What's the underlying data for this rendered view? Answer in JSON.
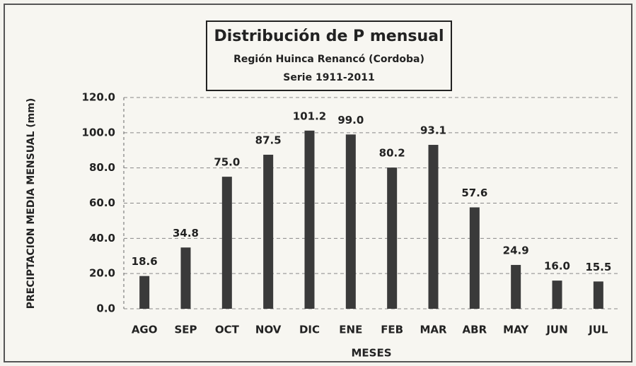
{
  "chart_data": {
    "type": "bar",
    "title": "Distribución de P mensual",
    "subtitle": [
      "Región Huinca Renancó (Cordoba)",
      "Serie 1911-2011"
    ],
    "y_label": "PRECIPTACION MEDIA MENSUAL (mm)",
    "x_label": "MESES",
    "categories": [
      "AGO",
      "SEP",
      "OCT",
      "NOV",
      "DIC",
      "ENE",
      "FEB",
      "MAR",
      "ABR",
      "MAY",
      "JUN",
      "JUL"
    ],
    "values": [
      18.6,
      34.8,
      75.0,
      87.5,
      101.2,
      99.0,
      80.2,
      93.1,
      57.6,
      24.9,
      16.0,
      15.5
    ],
    "value_labels": [
      "18.6",
      "34.8",
      "75.0",
      "87.5",
      "101.2",
      "99.0",
      "80.2",
      "93.1",
      "57.6",
      "24.9",
      "16.0",
      "15.5"
    ],
    "color": "#3a3a3a",
    "ylim": [
      0,
      120
    ],
    "yticks": [
      {
        "value": 0,
        "label": "0.0"
      },
      {
        "value": 20,
        "label": "20.0"
      },
      {
        "value": 40,
        "label": "40.0"
      },
      {
        "value": 60,
        "label": "60.0"
      },
      {
        "value": 80,
        "label": "80.0"
      },
      {
        "value": 100,
        "label": "100.0"
      },
      {
        "value": 120,
        "label": "120.0"
      }
    ],
    "grid": true
  }
}
